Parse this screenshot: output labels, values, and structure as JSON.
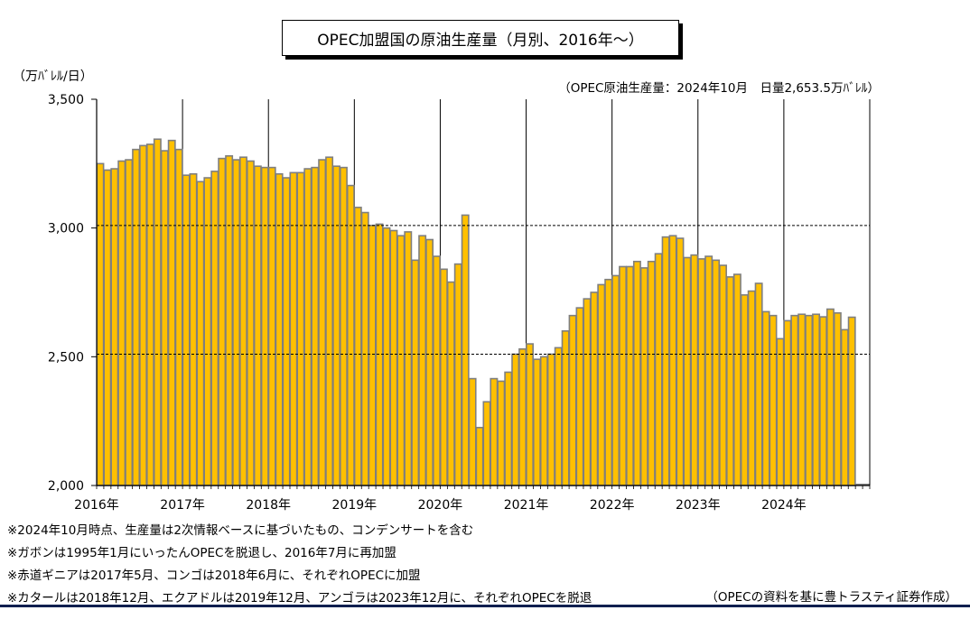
{
  "unit_label": "（万ﾊﾞﾚﾙ/日）",
  "latest_note": "（OPEC原油生産量：2024年10月　日量2,653.5万ﾊﾞﾚﾙ）",
  "notes": [
    "※2024年10月時点、生産量は2次情報ベースに基づいたもの、コンデンサートを含む",
    "※ガボンは1995年1月にいったんOPECを脱退し、2016年7月に再加盟",
    "※赤道ギニアは2017年5月、コンゴは2018年6月に、それぞれOPECに加盟",
    "※カタールは2018年12月、エクアドルは2019年12月、アンゴラは2023年12月に、それぞれOPECを脱退"
  ],
  "source": "（OPECの資料を基に豊トラスティ証券作成）",
  "colors": {
    "bar_fill": "#FFC000",
    "bar_edge": "#7F7F7F",
    "axis": "#000000",
    "bottom_rule": "#0B1F4F"
  },
  "chart_data": {
    "type": "bar",
    "title": "OPEC加盟国の原油生産量（月別、2016年～）",
    "ylabel": "（万ﾊﾞﾚﾙ/日）",
    "ylim": [
      2000,
      3500
    ],
    "yticks": [
      2000,
      2500,
      3000,
      3500
    ],
    "ytick_labels": [
      "2,000",
      "2,500",
      "3,000",
      "3,500"
    ],
    "xtick_labels": [
      "2016年",
      "2017年",
      "2018年",
      "2019年",
      "2020年",
      "2021年",
      "2022年",
      "2023年",
      "2024年"
    ],
    "xtick_months": [
      "2016-01",
      "2017-01",
      "2018-01",
      "2019-01",
      "2020-01",
      "2021-01",
      "2022-01",
      "2023-01",
      "2024-01"
    ],
    "reference_lines": [
      3010,
      2510
    ],
    "categories": [
      "2016-01",
      "2016-02",
      "2016-03",
      "2016-04",
      "2016-05",
      "2016-06",
      "2016-07",
      "2016-08",
      "2016-09",
      "2016-10",
      "2016-11",
      "2016-12",
      "2017-01",
      "2017-02",
      "2017-03",
      "2017-04",
      "2017-05",
      "2017-06",
      "2017-07",
      "2017-08",
      "2017-09",
      "2017-10",
      "2017-11",
      "2017-12",
      "2018-01",
      "2018-02",
      "2018-03",
      "2018-04",
      "2018-05",
      "2018-06",
      "2018-07",
      "2018-08",
      "2018-09",
      "2018-10",
      "2018-11",
      "2018-12",
      "2019-01",
      "2019-02",
      "2019-03",
      "2019-04",
      "2019-05",
      "2019-06",
      "2019-07",
      "2019-08",
      "2019-09",
      "2019-10",
      "2019-11",
      "2019-12",
      "2020-01",
      "2020-02",
      "2020-03",
      "2020-04",
      "2020-05",
      "2020-06",
      "2020-07",
      "2020-08",
      "2020-09",
      "2020-10",
      "2020-11",
      "2020-12",
      "2021-01",
      "2021-02",
      "2021-03",
      "2021-04",
      "2021-05",
      "2021-06",
      "2021-07",
      "2021-08",
      "2021-09",
      "2021-10",
      "2021-11",
      "2021-12",
      "2022-01",
      "2022-02",
      "2022-03",
      "2022-04",
      "2022-05",
      "2022-06",
      "2022-07",
      "2022-08",
      "2022-09",
      "2022-10",
      "2022-11",
      "2022-12",
      "2023-01",
      "2023-02",
      "2023-03",
      "2023-04",
      "2023-05",
      "2023-06",
      "2023-07",
      "2023-08",
      "2023-09",
      "2023-10",
      "2023-11",
      "2023-12",
      "2024-01",
      "2024-02",
      "2024-03",
      "2024-04",
      "2024-05",
      "2024-06",
      "2024-07",
      "2024-08",
      "2024-09",
      "2024-10"
    ],
    "values": [
      3250,
      3225,
      3230,
      3260,
      3265,
      3305,
      3320,
      3325,
      3345,
      3300,
      3340,
      3305,
      3205,
      3210,
      3180,
      3195,
      3220,
      3270,
      3280,
      3265,
      3275,
      3260,
      3240,
      3235,
      3235,
      3210,
      3195,
      3215,
      3215,
      3230,
      3235,
      3265,
      3275,
      3240,
      3235,
      3165,
      3080,
      3060,
      3010,
      3015,
      3000,
      2990,
      2970,
      2985,
      2875,
      2970,
      2955,
      2890,
      2840,
      2790,
      2860,
      3050,
      2415,
      2225,
      2325,
      2415,
      2405,
      2440,
      2510,
      2530,
      2550,
      2490,
      2500,
      2510,
      2535,
      2600,
      2660,
      2690,
      2725,
      2750,
      2780,
      2800,
      2815,
      2850,
      2850,
      2870,
      2845,
      2870,
      2900,
      2965,
      2970,
      2960,
      2885,
      2895,
      2880,
      2890,
      2875,
      2855,
      2810,
      2820,
      2740,
      2755,
      2785,
      2675,
      2660,
      2570,
      2640,
      2660,
      2665,
      2660,
      2665,
      2655,
      2685,
      2670,
      2605,
      2653.5
    ]
  }
}
